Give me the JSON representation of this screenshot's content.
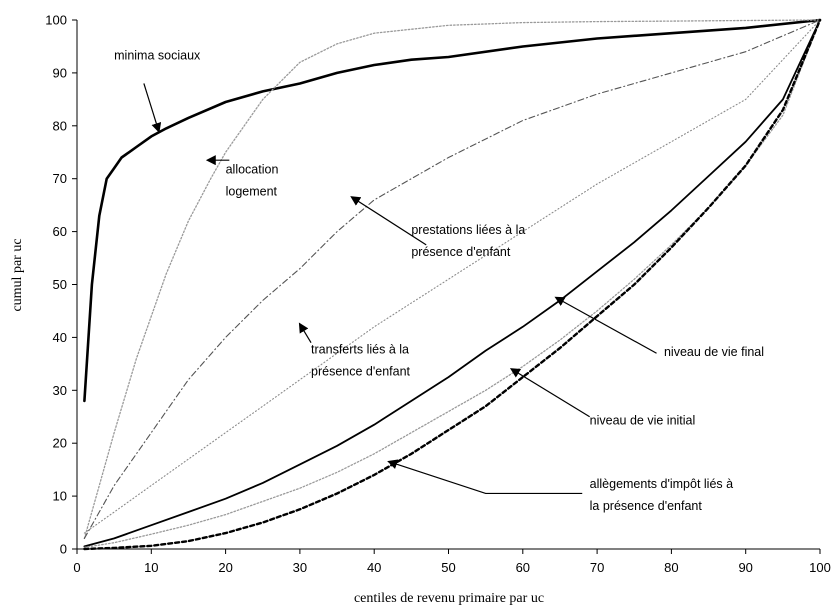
{
  "chart_data": {
    "type": "line",
    "xlabel": "centiles de revenu primaire par uc",
    "ylabel": "cumul par uc",
    "xlim": [
      0,
      100
    ],
    "ylim": [
      0,
      100
    ],
    "xticks": [
      0,
      10,
      20,
      30,
      40,
      50,
      60,
      70,
      80,
      90,
      100
    ],
    "yticks": [
      0,
      10,
      20,
      30,
      40,
      50,
      60,
      70,
      80,
      90,
      100
    ],
    "grid": false,
    "legend": "none",
    "series": [
      {
        "key": "minima",
        "label_lines": [
          "minima sociaux"
        ],
        "color": "#000000",
        "style": "solid-thick",
        "x": [
          1,
          2,
          3,
          4,
          5,
          6,
          7,
          8,
          10,
          12,
          15,
          20,
          25,
          30,
          35,
          40,
          45,
          50,
          60,
          70,
          80,
          90,
          100
        ],
        "y": [
          28,
          50,
          63,
          70,
          72,
          74,
          75,
          76,
          78,
          79.5,
          81.5,
          84.5,
          86.5,
          88,
          90,
          91.5,
          92.5,
          93,
          95,
          96.5,
          97.5,
          98.5,
          100
        ]
      },
      {
        "key": "logement",
        "label_lines": [
          "allocation",
          "logement"
        ],
        "color": "#9a9a9a",
        "style": "dotted",
        "x": [
          1,
          3,
          5,
          8,
          10,
          12,
          15,
          18,
          20,
          22,
          25,
          30,
          35,
          40,
          50,
          60,
          70,
          80,
          90,
          100
        ],
        "y": [
          2,
          12,
          22,
          36,
          44,
          52,
          62,
          70,
          75,
          79,
          85,
          92,
          95.5,
          97.5,
          99,
          99.5,
          99.7,
          99.8,
          99.9,
          100
        ]
      },
      {
        "key": "prestations",
        "label_lines": [
          "prestations liées à la",
          "présence d'enfant"
        ],
        "color": "#555555",
        "style": "dashdot",
        "x": [
          1,
          5,
          10,
          15,
          20,
          25,
          30,
          35,
          40,
          50,
          60,
          70,
          80,
          90,
          100
        ],
        "y": [
          2,
          12,
          22,
          32,
          40,
          47,
          53,
          60,
          66,
          74,
          81,
          86,
          90,
          94,
          100
        ]
      },
      {
        "key": "transferts",
        "label_lines": [
          "transferts liés à la",
          "présence d'enfant"
        ],
        "color": "#8a8a8a",
        "style": "fine-dotted",
        "x": [
          1,
          5,
          10,
          15,
          20,
          25,
          30,
          35,
          40,
          50,
          60,
          70,
          80,
          90,
          100
        ],
        "y": [
          3,
          7,
          12,
          17,
          22,
          27,
          32,
          37,
          42,
          51,
          60,
          69,
          77,
          85,
          100
        ]
      },
      {
        "key": "final",
        "label_lines": [
          "niveau de vie final"
        ],
        "color": "#000000",
        "style": "solid",
        "x": [
          1,
          5,
          10,
          15,
          20,
          25,
          30,
          35,
          40,
          45,
          50,
          55,
          60,
          65,
          70,
          75,
          80,
          85,
          90,
          95,
          100
        ],
        "y": [
          0.5,
          2,
          4.5,
          7,
          9.5,
          12.5,
          16,
          19.5,
          23.5,
          28,
          32.5,
          37.5,
          42,
          47,
          52.5,
          58,
          64,
          70.5,
          77,
          85,
          100
        ]
      },
      {
        "key": "initial",
        "label_lines": [
          "niveau de vie initial"
        ],
        "color": "#9a9a9a",
        "style": "dotted",
        "x": [
          1,
          5,
          10,
          15,
          20,
          25,
          30,
          35,
          40,
          45,
          50,
          55,
          60,
          65,
          70,
          75,
          80,
          85,
          90,
          95,
          100
        ],
        "y": [
          0.3,
          1.2,
          2.8,
          4.5,
          6.5,
          9,
          11.5,
          14.5,
          18,
          22,
          26,
          30,
          34.5,
          39.5,
          45,
          51,
          57.5,
          64.5,
          72.5,
          82,
          100
        ]
      },
      {
        "key": "allegements",
        "label_lines": [
          "allègements d'impôt  liés à",
          "la présence d'enfant"
        ],
        "color": "#000000",
        "style": "dashed-thick",
        "x": [
          1,
          5,
          10,
          15,
          20,
          25,
          30,
          35,
          40,
          45,
          50,
          55,
          60,
          65,
          70,
          75,
          80,
          85,
          90,
          95,
          100
        ],
        "y": [
          0,
          0.2,
          0.6,
          1.5,
          3,
          5,
          7.5,
          10.5,
          14,
          18,
          22.5,
          27,
          32.5,
          38,
          44,
          50,
          57,
          64.5,
          72.5,
          83,
          100
        ]
      }
    ],
    "annotations": [
      {
        "series": "minima",
        "label_at": [
          5,
          92.5
        ],
        "anchor": "start",
        "arrow_from": [
          9,
          88
        ],
        "arrow_to": [
          11,
          79
        ],
        "bend": null
      },
      {
        "series": "logement",
        "label_at": [
          20,
          71
        ],
        "anchor": "start",
        "arrow_from": [
          20.5,
          73.5
        ],
        "arrow_to": [
          17.6,
          73.5
        ],
        "bend": null
      },
      {
        "series": "prestations",
        "label_at": [
          45,
          59.5
        ],
        "anchor": "start",
        "arrow_from": [
          47,
          57.5
        ],
        "arrow_to": [
          37,
          66.5
        ],
        "bend": null
      },
      {
        "series": "transferts",
        "label_at": [
          31.5,
          37
        ],
        "anchor": "start",
        "arrow_from": [
          31.5,
          39
        ],
        "arrow_to": [
          30,
          42.5
        ],
        "bend": null
      },
      {
        "series": "final",
        "label_at": [
          79,
          36.5
        ],
        "anchor": "start",
        "arrow_from": [
          78,
          37
        ],
        "arrow_to": [
          64.5,
          47.5
        ],
        "bend": null
      },
      {
        "series": "initial",
        "label_at": [
          69,
          23.5
        ],
        "anchor": "start",
        "arrow_from": [
          69,
          25
        ],
        "arrow_to": [
          58.5,
          34
        ],
        "bend": null
      },
      {
        "series": "allegements",
        "label_at": [
          69,
          11.5
        ],
        "anchor": "start",
        "arrow_from": [
          68,
          10.5
        ],
        "arrow_to": [
          42,
          16.5
        ],
        "bend": [
          55,
          10.5
        ]
      }
    ]
  }
}
